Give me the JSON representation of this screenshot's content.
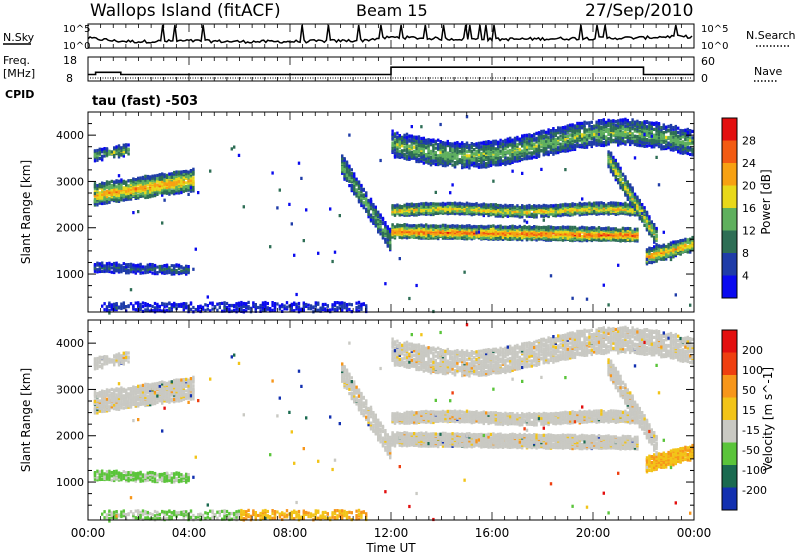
{
  "header": {
    "station": "Wallops Island (fitACF)",
    "beam": "Beam 15",
    "date": "27/Sep/2010"
  },
  "panels": {
    "nsky_label": "N.Sky",
    "nsearch_label": "N.Search",
    "freq_label": "Freq.",
    "freq_unit": "[MHz]",
    "nave_label": "Nave",
    "cpid_label": "CPID",
    "cpid_text": "tau (fast) -503",
    "noise_ticks_left": [
      "10^5",
      "10^0"
    ],
    "noise_ticks_right": [
      "10^5",
      "10^0"
    ],
    "freq_ticks": [
      "18",
      "8"
    ],
    "nave_ticks": [
      "60",
      "0"
    ]
  },
  "chart_data": [
    {
      "type": "line",
      "title": "",
      "series": [
        {
          "name": "N.Sky",
          "x": [
            0,
            1,
            2,
            4,
            6,
            8,
            10,
            11,
            12,
            14,
            16,
            18,
            20,
            22,
            23,
            24
          ],
          "values": [
            10,
            3,
            2,
            3,
            2,
            2,
            3,
            4,
            15,
            8,
            6,
            8,
            10,
            12,
            20,
            18
          ]
        }
      ]
    },
    {
      "type": "line",
      "series": [
        {
          "name": "Freq.",
          "x": [
            0,
            0.3,
            0.3,
            1.3,
            1.3,
            12,
            12,
            22,
            22,
            24
          ],
          "values": [
            10.5,
            10.5,
            11.5,
            11.5,
            10.5,
            10.5,
            13.8,
            13.8,
            10.5,
            10.5
          ]
        }
      ],
      "ylim": [
        8,
        18
      ]
    },
    {
      "type": "heatmap",
      "ylabel": "Slant Range [km]",
      "colorbar_label": "Power [dB]",
      "colorbar_ticks": [
        "28",
        "24",
        "20",
        "16",
        "12",
        "8",
        "4"
      ],
      "colors": [
        "#0a0aef",
        "#1f3ca8",
        "#2e6e55",
        "#5fb05e",
        "#e8d81a",
        "#f7a112",
        "#f35b12",
        "#e30f0f"
      ],
      "ylim": [
        180,
        4500
      ],
      "ticks_y": [
        1000,
        2000,
        3000,
        4000
      ]
    },
    {
      "type": "heatmap",
      "ylabel": "Slant Range [km]",
      "colorbar_label": "Velocity [m s^-1]",
      "colorbar_ticks": [
        "200",
        "100",
        "50",
        "15",
        "-15",
        "-50",
        "-100",
        "-200"
      ],
      "colors": [
        "#1230b0",
        "#1a6a50",
        "#5ac43a",
        "#c9c9c3",
        "#f2c418",
        "#f7961a",
        "#ef3f10",
        "#e30f0f"
      ],
      "ylim": [
        180,
        4500
      ],
      "ticks_y": [
        1000,
        2000,
        3000,
        4000
      ]
    }
  ],
  "axes": {
    "time_ticks": [
      "00:00",
      "04:00",
      "08:00",
      "12:00",
      "16:00",
      "20:00",
      "00:00"
    ],
    "xlabel": "Time UT"
  }
}
